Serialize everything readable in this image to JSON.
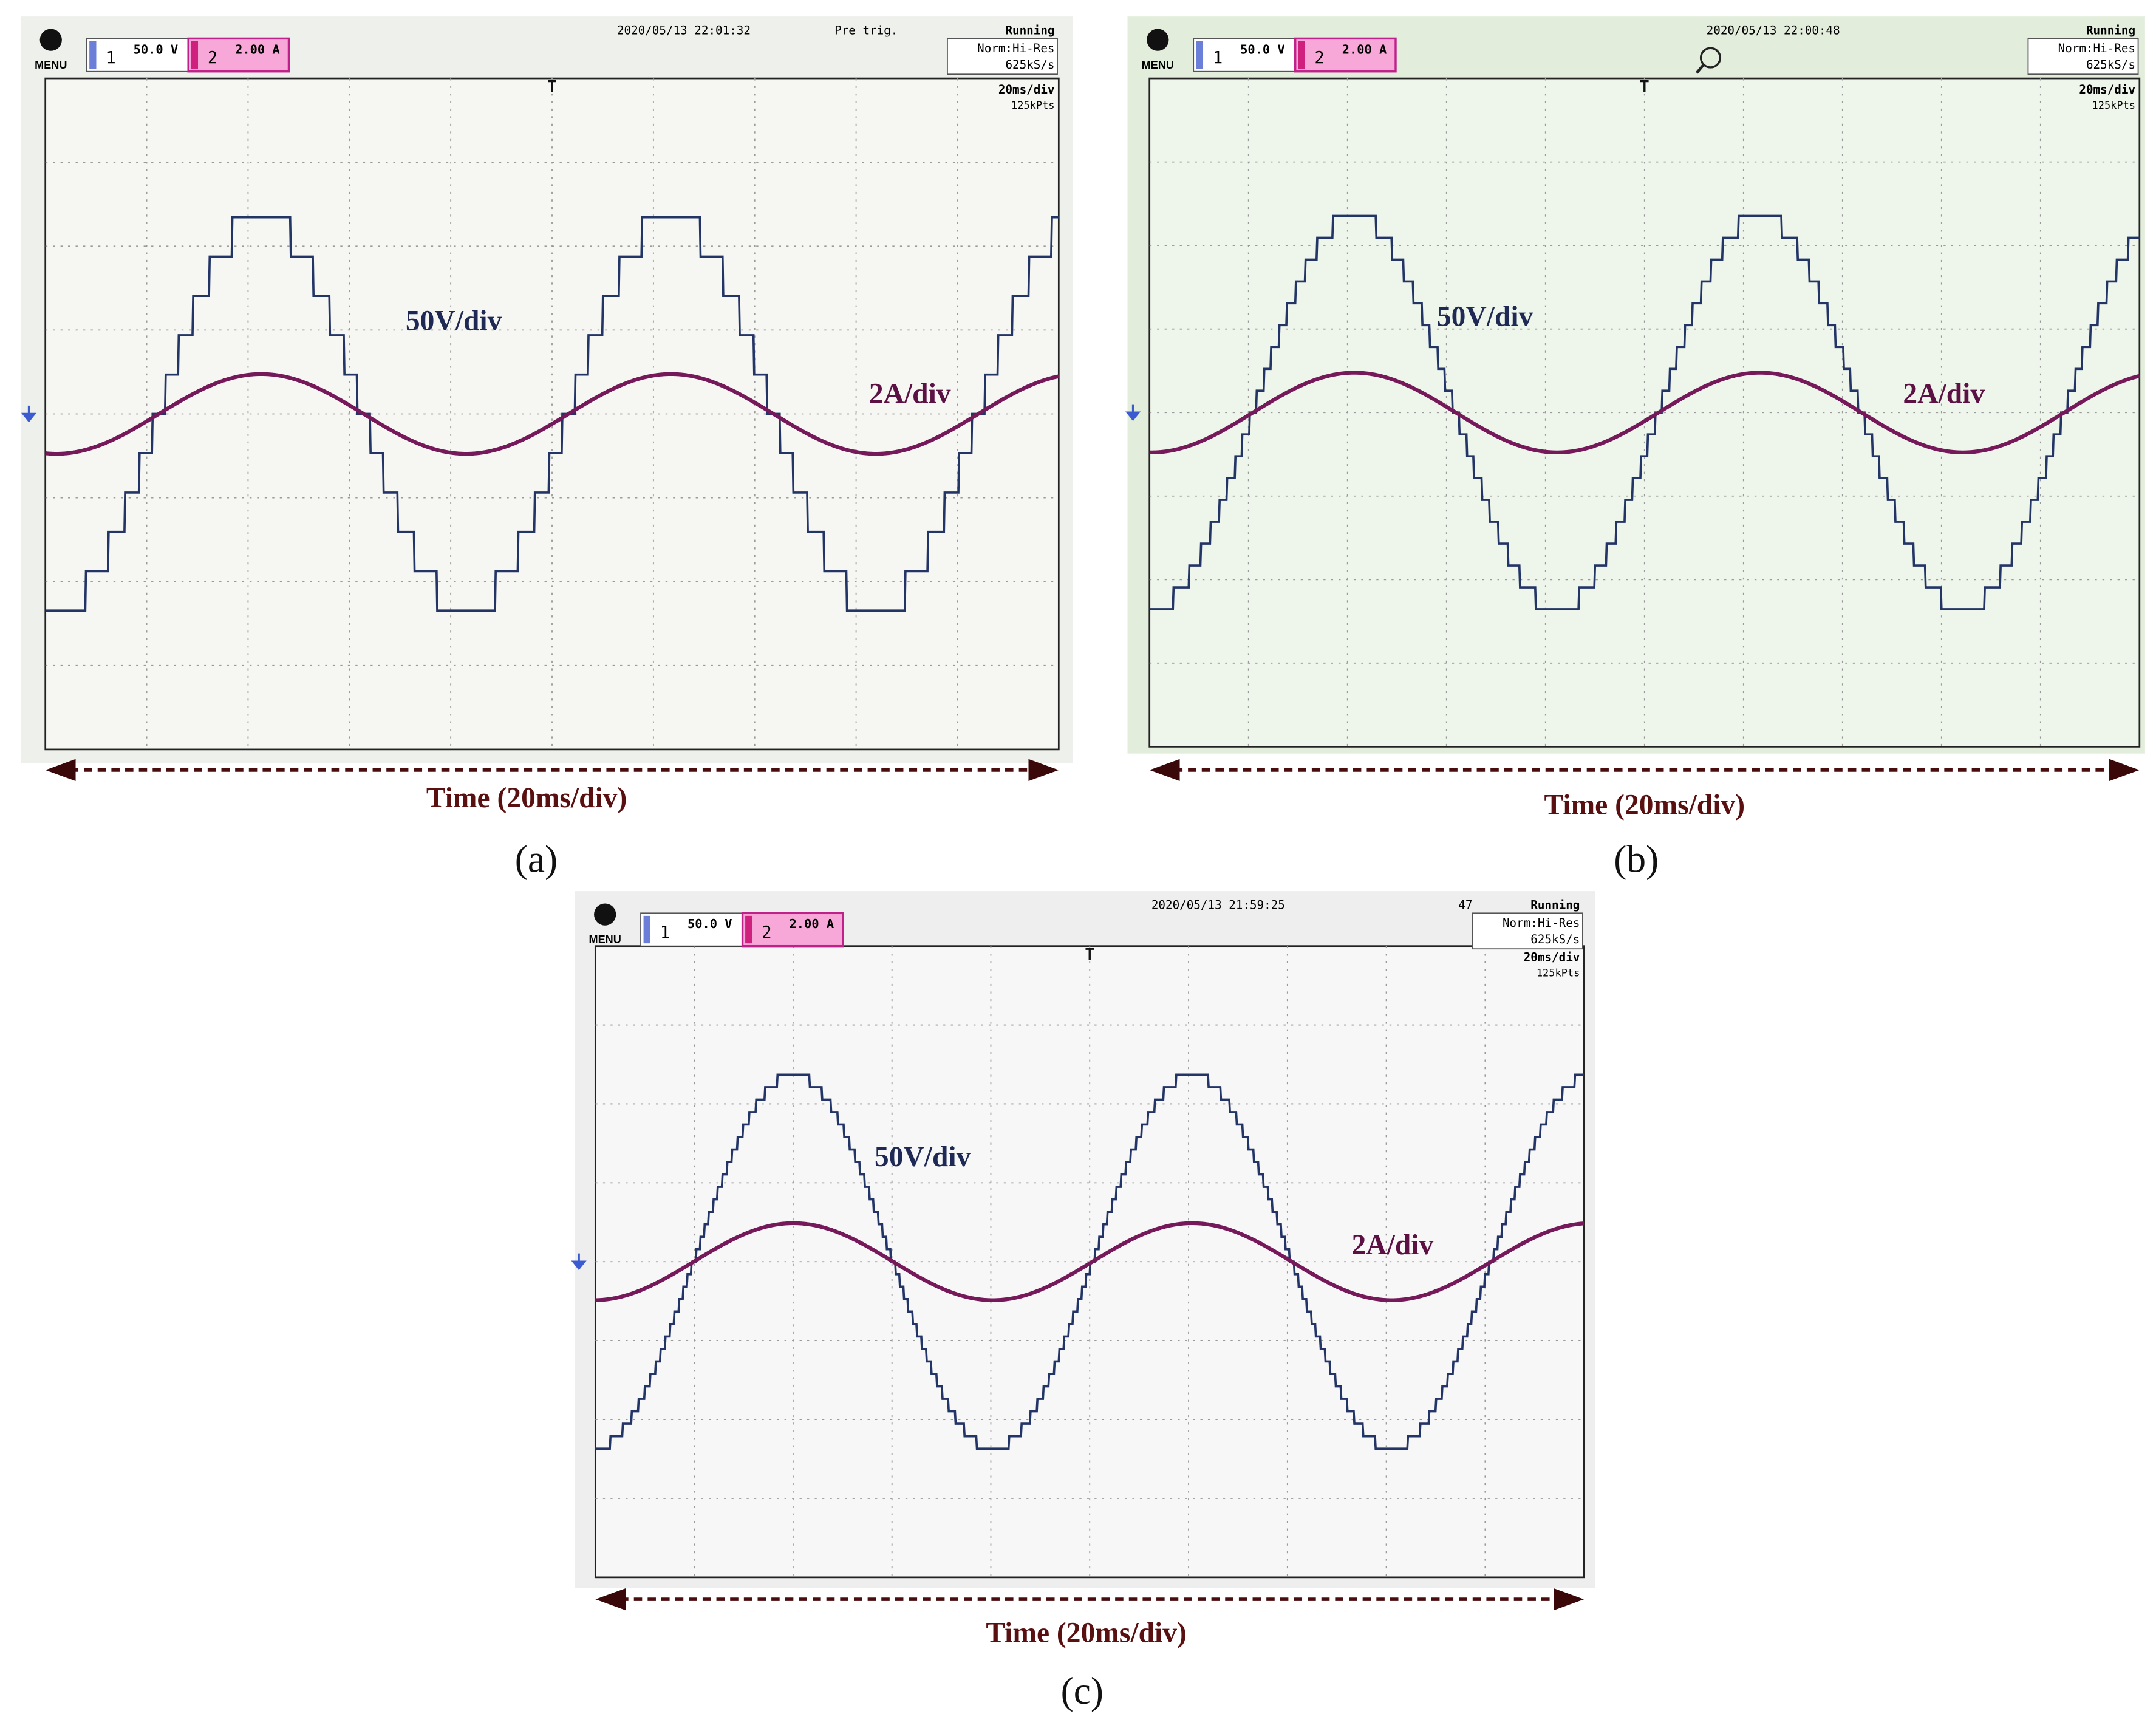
{
  "panels": [
    {
      "menu": "MENU",
      "ch1_number": "1",
      "ch1_scale": "50.0 V",
      "ch2_number": "2",
      "ch2_scale": "2.00 A",
      "timestamp": "2020/05/13 22:01:32",
      "status_extra": "Pre trig.",
      "run_state": "Running",
      "acq_mode": "Norm:Hi-Res",
      "sample_rate": "625kS/s",
      "time_div": "20ms/div",
      "record_length": "125kPts",
      "voltage_label": "50V/div",
      "current_label": "2A/div",
      "axis_label": "Time (20ms/div)",
      "caption": "(a)"
    },
    {
      "menu": "MENU",
      "ch1_number": "1",
      "ch1_scale": "50.0 V",
      "ch2_number": "2",
      "ch2_scale": "2.00 A",
      "timestamp": "2020/05/13 22:00:48",
      "run_state": "Running",
      "acq_mode": "Norm:Hi-Res",
      "sample_rate": "625kS/s",
      "time_div": "20ms/div",
      "record_length": "125kPts",
      "voltage_label": "50V/div",
      "current_label": "2A/div",
      "axis_label": "Time (20ms/div)",
      "caption": "(b)"
    },
    {
      "menu": "MENU",
      "ch1_number": "1",
      "ch1_scale": "50.0 V",
      "ch2_number": "2",
      "ch2_scale": "2.00 A",
      "timestamp": "2020/05/13 21:59:25",
      "status_extra": "47",
      "run_state": "Running",
      "acq_mode": "Norm:Hi-Res",
      "sample_rate": "625kS/s",
      "time_div": "20ms/div",
      "record_length": "125kPts",
      "voltage_label": "50V/div",
      "current_label": "2A/div",
      "axis_label": "Time (20ms/div)",
      "caption": "(c)"
    }
  ]
}
